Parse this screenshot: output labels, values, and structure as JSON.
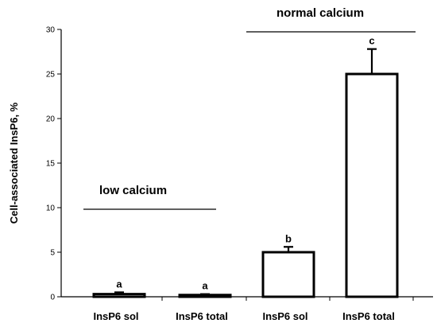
{
  "chart_data": {
    "type": "bar",
    "ylabel": "Cell-associated InsP6, %",
    "xlabel": "",
    "title": "",
    "ylim": [
      0,
      30
    ],
    "yticks": [
      0,
      5,
      10,
      15,
      20,
      25,
      30
    ],
    "categories": [
      "InsP6 sol",
      "InsP6 total",
      "InsP6 sol",
      "InsP6 total"
    ],
    "values": [
      0.3,
      0.2,
      5.0,
      25.0
    ],
    "errors": [
      0.2,
      0.1,
      0.6,
      2.8
    ],
    "significance": [
      "a",
      "a",
      "b",
      "c"
    ],
    "bar_fill": "#ffffff",
    "bar_stroke": "#000000",
    "groups": [
      {
        "label": "low calcium",
        "categories": [
          0,
          1
        ]
      },
      {
        "label": "normal calcium",
        "categories": [
          2,
          3
        ]
      }
    ]
  }
}
